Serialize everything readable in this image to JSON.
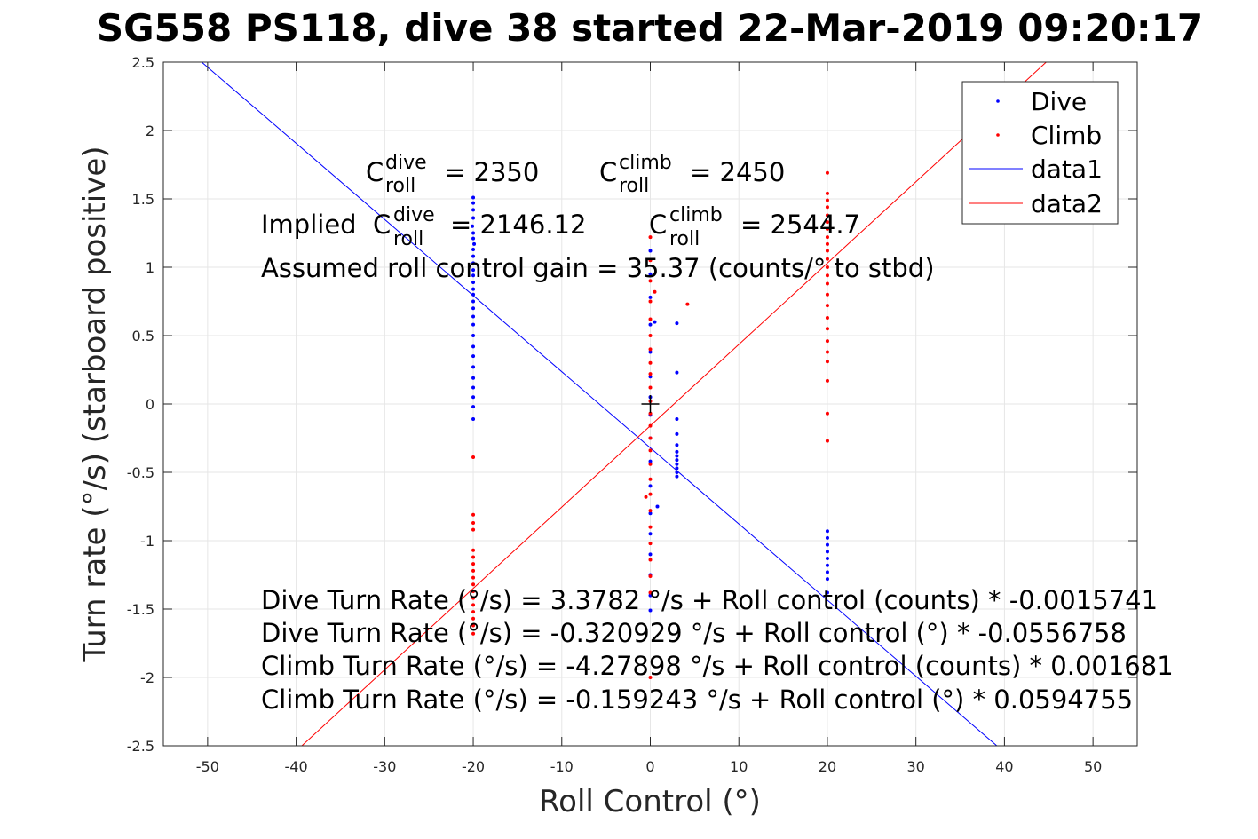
{
  "chart_data": {
    "type": "scatter",
    "title": "SG558 PS118, dive 38 started 22-Mar-2019 09:20:17",
    "xlabel": "Roll Control (°)",
    "ylabel": "Turn rate (°/s) (starboard positive)",
    "xlim": [
      -55,
      55
    ],
    "ylim": [
      -2.5,
      2.5
    ],
    "xticks": [
      "-50",
      "-40",
      "-30",
      "-20",
      "-10",
      "0",
      "10",
      "20",
      "30",
      "40",
      "50"
    ],
    "yticks": [
      "2.5",
      "2",
      "1.5",
      "1",
      "0.5",
      "0",
      "-0.5",
      "-1",
      "-1.5",
      "-2",
      "-2.5"
    ],
    "grid": true,
    "legend_position": "top-right",
    "legend": [
      "Dive",
      "Climb",
      "data1",
      "data2"
    ],
    "series": [
      {
        "name": "Dive",
        "kind": "points",
        "color": "#0000ff",
        "points": [
          [
            -20,
            1.51
          ],
          [
            -20,
            1.47
          ],
          [
            -20,
            1.42
          ],
          [
            -20,
            1.36
          ],
          [
            -20.1,
            1.3
          ],
          [
            -20,
            1.25
          ],
          [
            -20,
            1.21
          ],
          [
            -19.9,
            1.17
          ],
          [
            -20,
            1.13
          ],
          [
            -20,
            1.08
          ],
          [
            -20,
            1.03
          ],
          [
            -20,
            0.98
          ],
          [
            -20,
            0.94
          ],
          [
            -20,
            0.89
          ],
          [
            -20,
            0.84
          ],
          [
            -20,
            0.8
          ],
          [
            -20,
            0.75
          ],
          [
            -20,
            0.7
          ],
          [
            -20,
            0.64
          ],
          [
            -20,
            0.58
          ],
          [
            -20,
            0.5
          ],
          [
            -20,
            0.42
          ],
          [
            -20,
            0.35
          ],
          [
            -20,
            0.27
          ],
          [
            -20,
            0.19
          ],
          [
            -20,
            0.12
          ],
          [
            -20,
            0.05
          ],
          [
            -20,
            -0.02
          ],
          [
            -20,
            -0.11
          ],
          [
            20,
            -0.93
          ],
          [
            20,
            -0.98
          ],
          [
            20,
            -1.03
          ],
          [
            20,
            -1.08
          ],
          [
            20,
            -1.13
          ],
          [
            20,
            -1.18
          ],
          [
            20,
            -1.23
          ],
          [
            20,
            -1.28
          ],
          [
            20,
            -1.38
          ],
          [
            0,
            1.12
          ],
          [
            0,
            0.95
          ],
          [
            0,
            0.78
          ],
          [
            0,
            0.58
          ],
          [
            0,
            0.38
          ],
          [
            0,
            0.2
          ],
          [
            0,
            0.05
          ],
          [
            0,
            -0.08
          ],
          [
            0,
            -0.25
          ],
          [
            0,
            -0.42
          ],
          [
            0,
            -0.6
          ],
          [
            0,
            -0.8
          ],
          [
            0,
            -0.95
          ],
          [
            0,
            -1.1
          ],
          [
            0,
            -1.25
          ],
          [
            0,
            -1.4
          ],
          [
            0,
            -1.51
          ],
          [
            0.8,
            -0.75
          ],
          [
            0.5,
            0.6
          ],
          [
            3,
            0.59
          ],
          [
            3,
            0.23
          ],
          [
            3,
            -0.11
          ],
          [
            3,
            -0.22
          ],
          [
            3,
            -0.3
          ],
          [
            3,
            -0.35
          ],
          [
            3,
            -0.38
          ],
          [
            3,
            -0.41
          ],
          [
            3,
            -0.44
          ],
          [
            3,
            -0.47
          ],
          [
            3,
            -0.5
          ],
          [
            3,
            -0.53
          ]
        ]
      },
      {
        "name": "Climb",
        "kind": "points",
        "color": "#ff0000",
        "points": [
          [
            20,
            1.69
          ],
          [
            20,
            1.54
          ],
          [
            20,
            1.49
          ],
          [
            20,
            1.44
          ],
          [
            20,
            1.38
          ],
          [
            20,
            1.33
          ],
          [
            20,
            1.28
          ],
          [
            20,
            1.22
          ],
          [
            20,
            1.17
          ],
          [
            20,
            1.12
          ],
          [
            20,
            1.06
          ],
          [
            20,
            1.0
          ],
          [
            20,
            0.94
          ],
          [
            20,
            0.88
          ],
          [
            20,
            0.8
          ],
          [
            20,
            0.72
          ],
          [
            20,
            0.63
          ],
          [
            20,
            0.55
          ],
          [
            20,
            0.46
          ],
          [
            20,
            0.38
          ],
          [
            20,
            0.31
          ],
          [
            20,
            0.17
          ],
          [
            20,
            -0.07
          ],
          [
            20,
            -0.27
          ],
          [
            -20,
            -0.39
          ],
          [
            -20,
            -0.81
          ],
          [
            -20,
            -0.87
          ],
          [
            -20,
            -0.92
          ],
          [
            -20,
            -1.07
          ],
          [
            -20,
            -1.12
          ],
          [
            -20,
            -1.17
          ],
          [
            -20,
            -1.22
          ],
          [
            -20,
            -1.27
          ],
          [
            -20,
            -1.32
          ],
          [
            -20,
            -1.37
          ],
          [
            -20,
            -1.42
          ],
          [
            -20,
            -1.47
          ],
          [
            -20,
            -1.52
          ],
          [
            -20,
            -1.57
          ],
          [
            -20,
            -1.62
          ],
          [
            -20,
            -1.68
          ],
          [
            0,
            1.22
          ],
          [
            0,
            1.05
          ],
          [
            0,
            0.9
          ],
          [
            0,
            0.75
          ],
          [
            0,
            0.62
          ],
          [
            0,
            0.5
          ],
          [
            0,
            0.4
          ],
          [
            0,
            0.3
          ],
          [
            0,
            0.22
          ],
          [
            0,
            0.12
          ],
          [
            0,
            0.02
          ],
          [
            0,
            -0.07
          ],
          [
            0,
            -0.16
          ],
          [
            0,
            -0.25
          ],
          [
            0,
            -0.34
          ],
          [
            0,
            -0.44
          ],
          [
            0,
            -0.55
          ],
          [
            0,
            -0.66
          ],
          [
            0,
            -0.78
          ],
          [
            0,
            -0.9
          ],
          [
            0,
            -1.02
          ],
          [
            0,
            -1.14
          ],
          [
            0,
            -1.26
          ],
          [
            0,
            -1.38
          ],
          [
            -0.5,
            -0.68
          ],
          [
            0.5,
            0.82
          ],
          [
            4.2,
            0.73
          ],
          [
            0,
            -2.0
          ]
        ]
      },
      {
        "name": "data1",
        "kind": "line",
        "color": "#0000ff",
        "intercept": -0.320929,
        "slope": -0.0556758
      },
      {
        "name": "data2",
        "kind": "line",
        "color": "#ff0000",
        "intercept": -0.159243,
        "slope": 0.0594755
      }
    ],
    "marker": {
      "symbol": "+",
      "x": 0,
      "y": 0,
      "color": "#000000"
    },
    "annotations": {
      "c_dive": {
        "base": "C",
        "sup": "dive",
        "sub": "roll",
        "value": "= 2350"
      },
      "c_climb": {
        "base": "C",
        "sup": "climb",
        "sub": "roll",
        "value": "= 2450"
      },
      "implied_prefix": "Implied ",
      "implied_dive": {
        "base": "C",
        "sup": "dive",
        "sub": "roll",
        "value": "= 2146.12"
      },
      "implied_climb": {
        "base": "C",
        "sup": "climb",
        "sub": "roll",
        "value": "= 2544.7"
      },
      "gain": "Assumed roll control gain = 35.37 (counts/° to stbd)",
      "eq1": "Dive Turn Rate (°/s) = 3.3782 °/s + Roll control (counts) * -0.0015741",
      "eq2": "Dive Turn Rate (°/s) = -0.320929 °/s + Roll control (°) * -0.0556758",
      "eq3": "Climb Turn Rate (°/s) = -4.27898 °/s + Roll control (counts) * 0.001681",
      "eq4": "Climb Turn Rate (°/s) = -0.159243 °/s + Roll control (°) * 0.0594755"
    }
  }
}
